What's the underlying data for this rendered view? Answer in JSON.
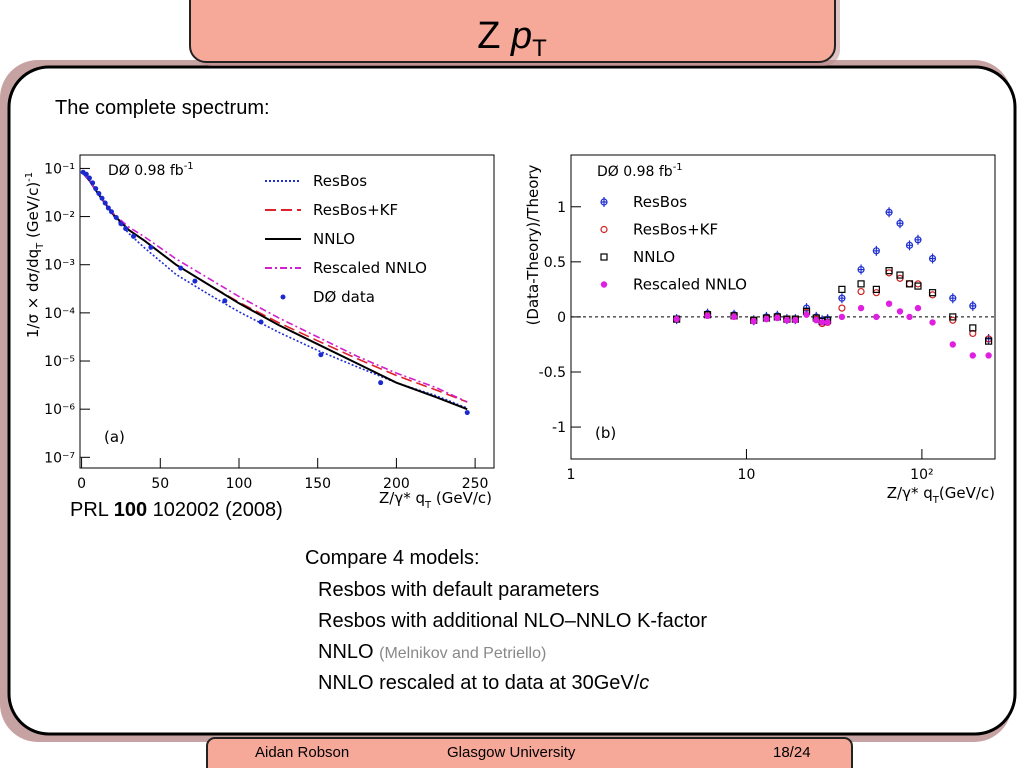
{
  "title": {
    "main": "Z ",
    "var": "p",
    "sub": "T"
  },
  "intro": "The complete spectrum:",
  "reference": {
    "pre": "PRL ",
    "bold": "100",
    "post": " 102002 (2008)"
  },
  "notes": {
    "heading": "Compare 4 models:",
    "items": [
      "Resbos with default parameters",
      "Resbos with additional NLO–NNLO K-factor"
    ],
    "nnlo": "NNLO ",
    "nnlo_note": "(Melnikov and Petriello)",
    "rescaled": "NNLO rescaled at to data at 30GeV/",
    "rescaled_unit": "c"
  },
  "footer": {
    "author": "Aidan Robson",
    "institution": "Glasgow University",
    "page": "18/24"
  },
  "chart_data": [
    {
      "type": "line",
      "annotation": "DØ 0.98 fb",
      "annotation_sup": "-1",
      "panel": "(a)",
      "xlabel": "Z/γ* q",
      "xlabel_sub": "T",
      "xlabel_unit": " (GeV/c)",
      "ylabel": "1/σ × dσ/dq",
      "ylabel_sub": "T",
      "ylabel_unit": " (GeV/c)",
      "ylabel_sup": "-1",
      "xlim": [
        -1,
        262
      ],
      "ylim": [
        6e-08,
        0.19
      ],
      "ylog": true,
      "legend": "upper right",
      "xticks": [
        0,
        50,
        100,
        150,
        200,
        250
      ],
      "yticks": [
        {
          "value": 1e-07,
          "label": "10⁻⁷"
        },
        {
          "value": 1e-06,
          "label": "10⁻⁶"
        },
        {
          "value": 1e-05,
          "label": "10⁻⁵"
        },
        {
          "value": 0.0001,
          "label": "10⁻⁴"
        },
        {
          "value": 0.001,
          "label": "10⁻³"
        },
        {
          "value": 0.01,
          "label": "10⁻²"
        },
        {
          "value": 0.1,
          "label": "10⁻¹"
        }
      ],
      "series": [
        {
          "name": "ResBos",
          "color": "#1f2fd0",
          "style": "dotted",
          "x": [
            1,
            5,
            10,
            20,
            30,
            40,
            60,
            80,
            100,
            125,
            150,
            175,
            200,
            225,
            245
          ],
          "values": [
            0.0794,
            0.0562,
            0.0316,
            0.0107,
            0.00447,
            0.00224,
            0.00063,
            0.000251,
            0.000105,
            3.98e-05,
            1.66e-05,
            7.59e-06,
            3.55e-06,
            1.91e-06,
            1.05e-06
          ]
        },
        {
          "name": "ResBos+KF",
          "color": "#e0202a",
          "style": "dashed",
          "x": [
            1,
            5,
            10,
            20,
            30,
            40,
            60,
            80,
            100,
            125,
            150,
            175,
            200,
            225,
            245
          ],
          "values": [
            0.0794,
            0.0562,
            0.0316,
            0.0112,
            0.00525,
            0.00316,
            0.001,
            0.000398,
            0.000166,
            6.31e-05,
            2.63e-05,
            1.12e-05,
            5.01e-06,
            2.51e-06,
            1.41e-06
          ]
        },
        {
          "name": "NNLO",
          "color": "#000000",
          "style": "solid",
          "x": [
            1,
            5,
            10,
            20,
            30,
            40,
            60,
            80,
            100,
            125,
            150,
            175,
            200,
            225,
            245
          ],
          "values": [
            0.0794,
            0.0562,
            0.0316,
            0.0112,
            0.00525,
            0.00316,
            0.001,
            0.000398,
            0.000158,
            5.62e-05,
            2.24e-05,
            8.91e-06,
            3.55e-06,
            1.78e-06,
            1e-06
          ]
        },
        {
          "name": "Rescaled NNLO",
          "color": "#d020d0",
          "style": "dashdot",
          "x": [
            1,
            5,
            10,
            20,
            30,
            40,
            60,
            80,
            100,
            125,
            150,
            175,
            200,
            225,
            245
          ],
          "values": [
            0.0794,
            0.0562,
            0.0316,
            0.0117,
            0.00603,
            0.0038,
            0.00132,
            0.000537,
            0.000219,
            7.94e-05,
            3.16e-05,
            1.26e-05,
            5.62e-06,
            2.82e-06,
            1.41e-06
          ]
        },
        {
          "name": "DØ data",
          "color": "#1a2ad0",
          "style": "points",
          "x": [
            1,
            3,
            5,
            7,
            9,
            11,
            13,
            15,
            17,
            19,
            22,
            25,
            28,
            33,
            44,
            63,
            72,
            91,
            114,
            152,
            190,
            245
          ],
          "values": [
            0.0832,
            0.0759,
            0.0631,
            0.0501,
            0.038,
            0.0302,
            0.024,
            0.0191,
            0.0151,
            0.0126,
            0.00955,
            0.00708,
            0.00562,
            0.00389,
            0.00229,
            0.000851,
            0.000457,
            0.000178,
            6.46e-05,
            1.35e-05,
            3.55e-06,
            8.5e-07
          ]
        }
      ]
    },
    {
      "type": "scatter",
      "annotation": "DØ 0.98 fb",
      "annotation_sup": "-1",
      "panel": "(b)",
      "xlabel": "Z/γ* q",
      "xlabel_sub": "T",
      "xlabel_unit": "(GeV/c)",
      "ylabel": "(Data-Theory)/Theory",
      "xlim": [
        1,
        261
      ],
      "ylim": [
        -1.29,
        1.47
      ],
      "xlog": true,
      "hline": 0,
      "legend": "upper left",
      "xticks": [
        1,
        10,
        {
          "value": 100,
          "label": "10²"
        }
      ],
      "yticks": [
        -1,
        -0.5,
        0,
        0.5,
        1
      ],
      "x": [
        4,
        6,
        8.5,
        11,
        13,
        15,
        17,
        19,
        22,
        25,
        27,
        29,
        35,
        45,
        55,
        65,
        75,
        85,
        95,
        115,
        150,
        195,
        240
      ],
      "series": [
        {
          "name": "ResBos",
          "color": "#1f2fd0",
          "marker": "cross-circle",
          "values": [
            -0.02,
            0.03,
            0.02,
            -0.03,
            0,
            0.01,
            -0.02,
            -0.02,
            0.08,
            0,
            -0.03,
            -0.02,
            0.17,
            0.43,
            0.6,
            0.95,
            0.85,
            0.65,
            0.7,
            0.53,
            0.17,
            0.1,
            -0.2
          ]
        },
        {
          "name": "ResBos+KF",
          "color": "#d02020",
          "marker": "open-circle",
          "values": [
            -0.02,
            0.02,
            0.01,
            -0.03,
            -0.01,
            0,
            -0.02,
            -0.02,
            0.04,
            -0.02,
            -0.06,
            -0.05,
            0.08,
            0.23,
            0.22,
            0.4,
            0.35,
            0.3,
            0.3,
            0.2,
            -0.03,
            -0.15,
            -0.2
          ]
        },
        {
          "name": "NNLO",
          "color": "#000000",
          "marker": "open-square",
          "values": [
            -0.02,
            0.02,
            0.01,
            -0.03,
            -0.01,
            0,
            -0.02,
            -0.02,
            0.05,
            -0.01,
            -0.04,
            -0.03,
            0.25,
            0.3,
            0.25,
            0.42,
            0.38,
            0.3,
            0.28,
            0.22,
            0,
            -0.1,
            -0.22
          ]
        },
        {
          "name": "Rescaled NNLO",
          "color": "#e020e0",
          "marker": "filled-circle",
          "values": [
            -0.02,
            0.01,
            0,
            -0.04,
            -0.02,
            -0.01,
            -0.03,
            -0.03,
            0.02,
            -0.03,
            -0.05,
            -0.05,
            0,
            0.08,
            0,
            0.12,
            0.05,
            0,
            0.08,
            -0.05,
            -0.25,
            -0.35,
            -0.35
          ]
        }
      ]
    }
  ]
}
